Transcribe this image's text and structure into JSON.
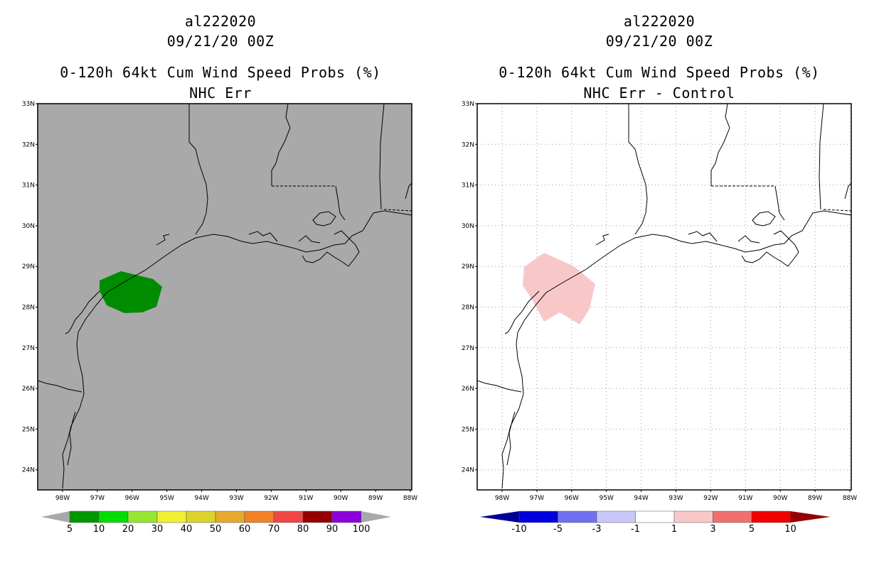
{
  "left_panel": {
    "storm_id": "al222020",
    "datetime": "09/21/20 00Z",
    "product": "0-120h 64kt Cum Wind Speed Probs (%)",
    "subtitle": "NHC Err",
    "background": "#a9a9a9",
    "prob_fill_color": "#008c00",
    "colorbar": {
      "colors": [
        "#009600",
        "#00dc00",
        "#96e632",
        "#f0f032",
        "#dcd22d",
        "#e6aa2d",
        "#f08228",
        "#f04646",
        "#960000",
        "#8c00dc"
      ],
      "labels": [
        "5",
        "10",
        "20",
        "30",
        "40",
        "50",
        "60",
        "70",
        "80",
        "90",
        "100"
      ],
      "end_color": "#a9a9a9"
    }
  },
  "right_panel": {
    "storm_id": "al222020",
    "datetime": "09/21/20 00Z",
    "product": "0-120h 64kt Cum Wind Speed Probs (%)",
    "subtitle": "NHC Err - Control",
    "background": "#ffffff",
    "diff_fill_color": "#f8c8c8",
    "colorbar": {
      "colors": [
        "#0000dc",
        "#7070f0",
        "#c8c8f8",
        "#ffffff",
        "#f8c8c8",
        "#f07070",
        "#f00000"
      ],
      "left_end_color": "#000096",
      "right_end_color": "#960000",
      "labels": [
        "-10",
        "-5",
        "-3",
        "-1",
        "1",
        "3",
        "5",
        "10"
      ]
    }
  },
  "map": {
    "lat_labels": [
      "33N",
      "32N",
      "31N",
      "30N",
      "29N",
      "28N",
      "27N",
      "26N",
      "25N",
      "24N"
    ],
    "lon_labels": [
      "98W",
      "97W",
      "96W",
      "95W",
      "94W",
      "93W",
      "92W",
      "91W",
      "90W",
      "89W",
      "88W"
    ]
  }
}
